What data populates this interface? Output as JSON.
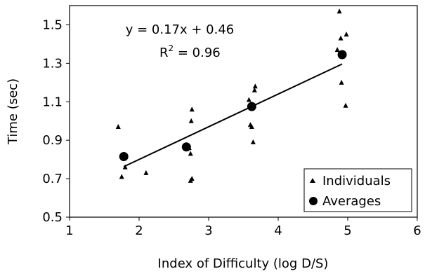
{
  "chart_data": {
    "type": "scatter",
    "title": "",
    "xlabel": "Index of Difficulty (log D/S)",
    "ylabel": "Time (sec)",
    "xlim": [
      1,
      6
    ],
    "ylim": [
      0.5,
      1.6
    ],
    "xticks": [
      1,
      2,
      3,
      4,
      5,
      6
    ],
    "yticks": [
      0.5,
      0.7,
      0.9,
      1.1,
      1.3,
      1.5
    ],
    "xtick_labels": [
      "1",
      "2",
      "3",
      "4",
      "5",
      "6"
    ],
    "ytick_labels": [
      "0.5",
      "0.7",
      "0.9",
      "1.1",
      "1.3",
      "1.5"
    ],
    "grid": false,
    "legend_position": "bottom-right",
    "series": [
      {
        "name": "Individuals",
        "marker": "triangle",
        "points": [
          [
            1.7,
            0.97
          ],
          [
            1.75,
            0.71
          ],
          [
            1.8,
            0.76
          ],
          [
            2.1,
            0.73
          ],
          [
            2.7,
            0.87
          ],
          [
            2.72,
            0.86
          ],
          [
            2.74,
            0.83
          ],
          [
            2.75,
            1.0
          ],
          [
            2.76,
            1.06
          ],
          [
            2.74,
            0.69
          ],
          [
            2.76,
            0.7
          ],
          [
            3.58,
            1.11
          ],
          [
            3.6,
            0.98
          ],
          [
            3.62,
            0.97
          ],
          [
            3.64,
            0.89
          ],
          [
            3.66,
            1.16
          ],
          [
            3.67,
            1.18
          ],
          [
            4.85,
            1.37
          ],
          [
            4.88,
            1.57
          ],
          [
            4.9,
            1.43
          ],
          [
            4.91,
            1.2
          ],
          [
            4.97,
            1.08
          ],
          [
            4.98,
            1.45
          ]
        ]
      },
      {
        "name": "Averages",
        "marker": "circle",
        "points": [
          [
            1.78,
            0.815
          ],
          [
            2.68,
            0.865
          ],
          [
            3.62,
            1.075
          ],
          [
            4.92,
            1.345
          ]
        ]
      }
    ],
    "trendline": {
      "equation": "y = 0.17x + 0.46",
      "r_squared_label": "R",
      "r_squared_exponent": "2",
      "r_squared_value": " = 0.96",
      "slope": 0.17,
      "intercept": 0.46,
      "x_range": [
        1.78,
        4.92
      ]
    }
  }
}
